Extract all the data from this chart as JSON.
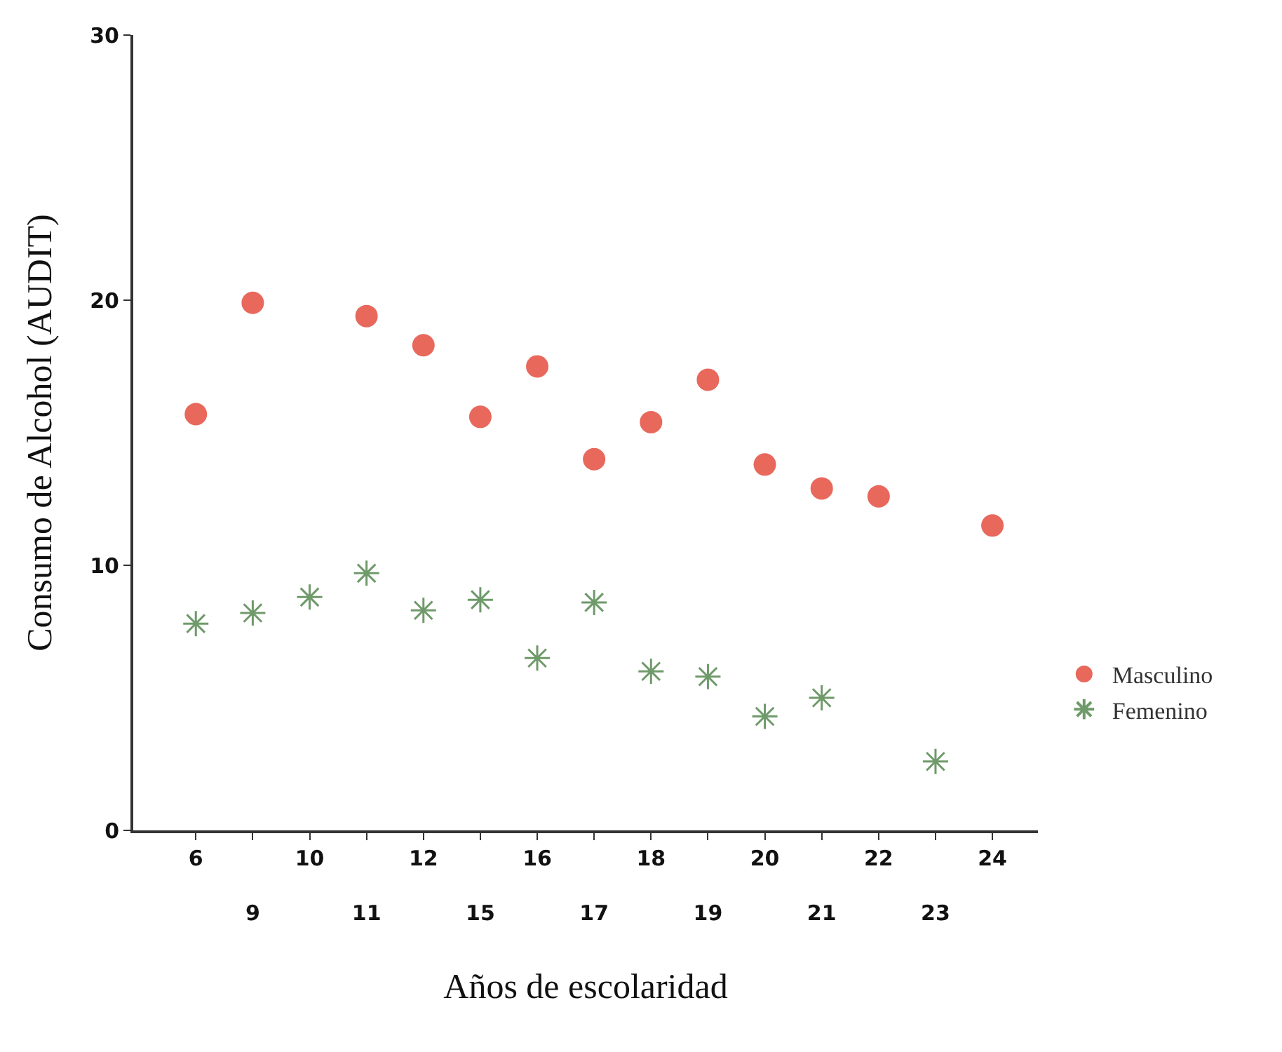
{
  "chart_data": {
    "type": "scatter",
    "xlabel": "Años de escolaridad",
    "ylabel": "Consumo de Alcohol (AUDIT)",
    "categories": [
      "6",
      "9",
      "10",
      "11",
      "12",
      "15",
      "16",
      "17",
      "18",
      "19",
      "20",
      "21",
      "22",
      "23",
      "24"
    ],
    "series": [
      {
        "name": "Masculino",
        "color": "#e8685c",
        "marker": "circle",
        "values": [
          15.7,
          19.9,
          null,
          19.4,
          18.3,
          15.6,
          17.5,
          14.0,
          15.4,
          17.0,
          13.8,
          12.9,
          12.6,
          null,
          11.5
        ]
      },
      {
        "name": "Femenino",
        "color": "#6f9a6a",
        "marker": "cross",
        "values": [
          7.8,
          8.2,
          8.8,
          9.7,
          8.3,
          8.7,
          6.5,
          8.6,
          6.0,
          5.8,
          4.3,
          5.0,
          null,
          2.6,
          null
        ]
      }
    ],
    "ylim": [
      0,
      30
    ],
    "yticks": [
      0,
      10,
      20,
      30
    ],
    "grid": false,
    "legend": "bottom right"
  }
}
